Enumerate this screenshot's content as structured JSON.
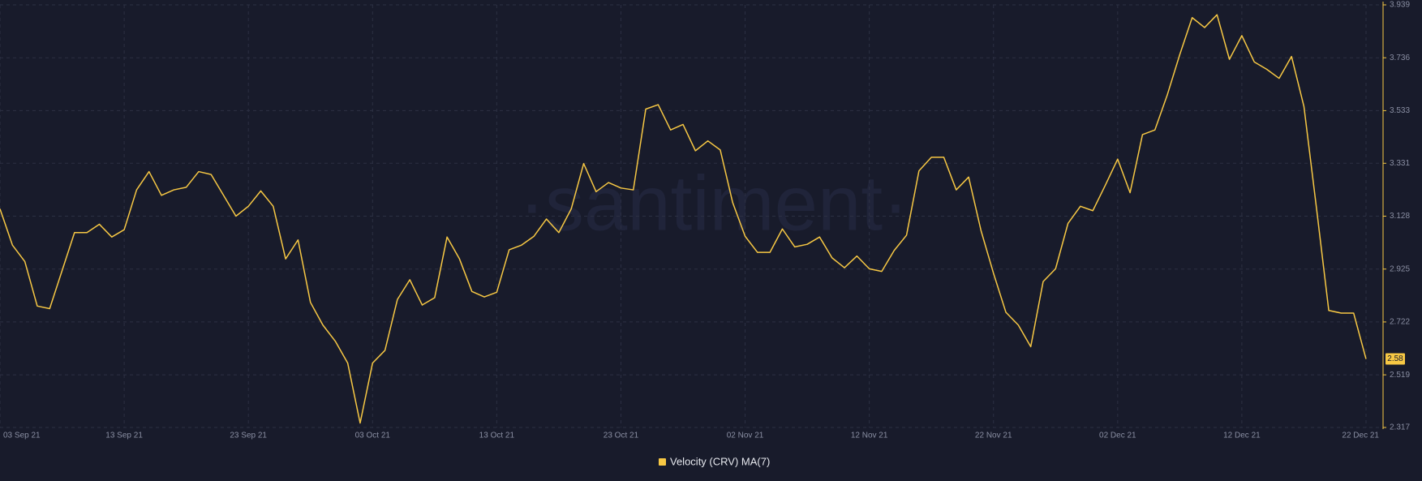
{
  "chart_data": {
    "type": "line",
    "watermark": "·santiment·",
    "categories": [
      "03 Sep 21",
      null,
      null,
      null,
      null,
      null,
      null,
      null,
      null,
      null,
      "13 Sep 21",
      null,
      null,
      null,
      null,
      null,
      null,
      null,
      null,
      null,
      "23 Sep 21",
      null,
      null,
      null,
      null,
      null,
      null,
      null,
      null,
      null,
      "03 Oct 21",
      null,
      null,
      null,
      null,
      null,
      null,
      null,
      null,
      null,
      "13 Oct 21",
      null,
      null,
      null,
      null,
      null,
      null,
      null,
      null,
      null,
      "23 Oct 21",
      null,
      null,
      null,
      null,
      null,
      null,
      null,
      null,
      null,
      "02 Nov 21",
      null,
      null,
      null,
      null,
      null,
      null,
      null,
      null,
      null,
      "12 Nov 21",
      null,
      null,
      null,
      null,
      null,
      null,
      null,
      null,
      null,
      "22 Nov 21",
      null,
      null,
      null,
      null,
      null,
      null,
      null,
      null,
      null,
      "02 Dec 21",
      null,
      null,
      null,
      null,
      null,
      null,
      null,
      null,
      null,
      "12 Dec 21",
      null,
      null,
      null,
      null,
      null,
      null,
      null,
      null,
      null,
      "22 Dec 21"
    ],
    "series": [
      {
        "name": "Velocity (CRV) MA(7)",
        "color": "#f7c844",
        "values": [
          3.156,
          3.017,
          2.954,
          2.783,
          2.773,
          2.919,
          3.065,
          3.065,
          3.097,
          3.048,
          3.076,
          3.229,
          3.299,
          3.208,
          3.229,
          3.239,
          3.299,
          3.288,
          3.208,
          3.128,
          3.166,
          3.225,
          3.166,
          2.964,
          3.037,
          2.797,
          2.71,
          2.648,
          2.564,
          2.334,
          2.564,
          2.613,
          2.808,
          2.884,
          2.787,
          2.815,
          3.048,
          2.964,
          2.839,
          2.818,
          2.836,
          2.999,
          3.017,
          3.051,
          3.117,
          3.065,
          3.156,
          3.33,
          3.222,
          3.257,
          3.236,
          3.229,
          3.539,
          3.556,
          3.459,
          3.48,
          3.379,
          3.417,
          3.382,
          3.18,
          3.051,
          2.989,
          2.989,
          3.079,
          3.01,
          3.02,
          3.048,
          2.968,
          2.93,
          2.975,
          2.926,
          2.916,
          2.996,
          3.055,
          3.302,
          3.354,
          3.354,
          3.229,
          3.278,
          3.072,
          2.909,
          2.759,
          2.71,
          2.627,
          2.877,
          2.926,
          3.1,
          3.166,
          3.149,
          3.246,
          3.347,
          3.218,
          3.441,
          3.459,
          3.594,
          3.748,
          3.89,
          3.852,
          3.901,
          3.73,
          3.821,
          3.72,
          3.692,
          3.657,
          3.741,
          3.549,
          3.163,
          2.766,
          2.756,
          2.756,
          2.58
        ]
      }
    ],
    "ylim": [
      2.317,
      3.939
    ],
    "yticks": [
      2.317,
      2.519,
      2.722,
      2.925,
      3.128,
      3.331,
      3.533,
      3.736,
      3.939
    ],
    "grid": true
  }
}
